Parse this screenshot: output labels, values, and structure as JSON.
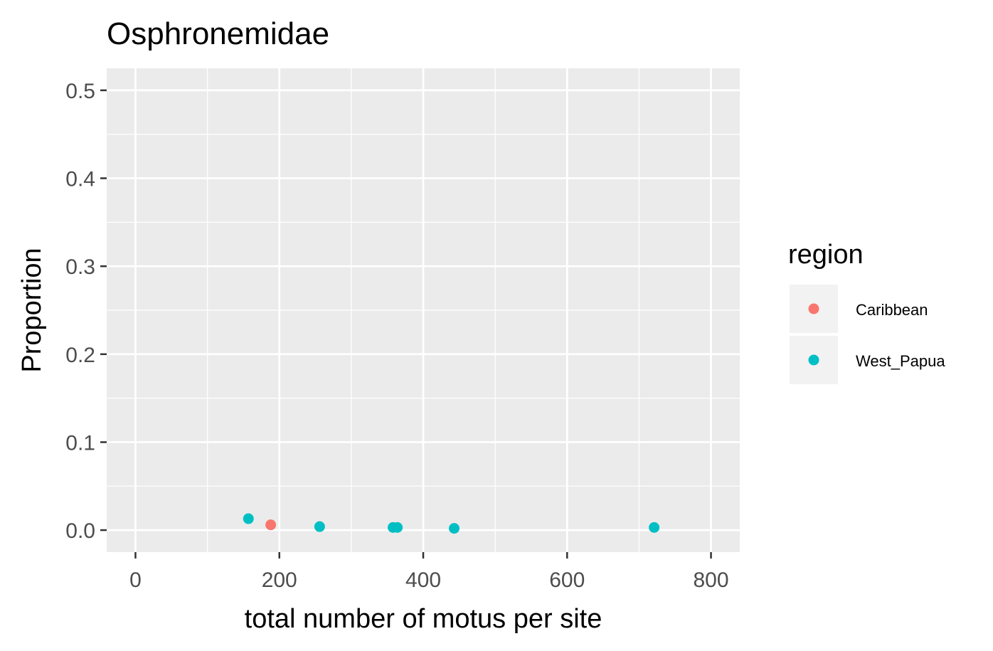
{
  "chart_data": {
    "type": "scatter",
    "title": "Osphronemidae",
    "xlabel": "total number of motus per site",
    "ylabel": "Proportion",
    "xlim": [
      -40,
      840
    ],
    "ylim": [
      -0.025,
      0.525
    ],
    "xticks": [
      0,
      200,
      400,
      600,
      800
    ],
    "xtick_labels": [
      "0",
      "200",
      "400",
      "600",
      "800"
    ],
    "yticks": [
      0.0,
      0.1,
      0.2,
      0.3,
      0.4,
      0.5
    ],
    "ytick_labels": [
      "0.0",
      "0.1",
      "0.2",
      "0.3",
      "0.4",
      "0.5"
    ],
    "grid": true,
    "legend": {
      "title": "region",
      "placement": "right"
    },
    "series": [
      {
        "name": "Caribbean",
        "color": "#F8766D",
        "points": [
          {
            "x": 188,
            "y": 0.006
          }
        ]
      },
      {
        "name": "West_Papua",
        "color": "#00BFC4",
        "points": [
          {
            "x": 157,
            "y": 0.013
          },
          {
            "x": 256,
            "y": 0.004
          },
          {
            "x": 358,
            "y": 0.003
          },
          {
            "x": 364,
            "y": 0.003
          },
          {
            "x": 443,
            "y": 0.002
          },
          {
            "x": 721,
            "y": 0.003
          }
        ]
      }
    ]
  }
}
